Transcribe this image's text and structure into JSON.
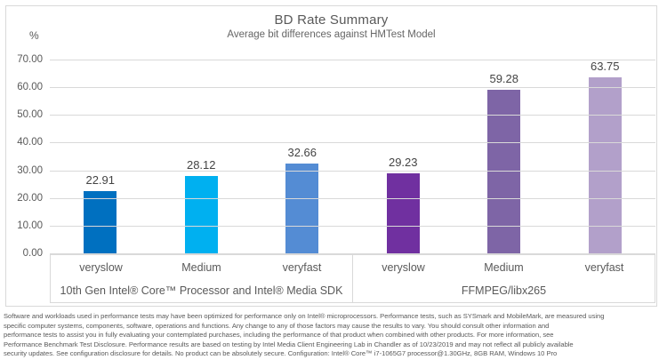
{
  "chart": {
    "title": "BD Rate Summary",
    "subtitle": "Average bit differences against HMTest Model",
    "unit_label": "%"
  },
  "chart_data": {
    "type": "bar",
    "title": "BD Rate Summary",
    "subtitle": "Average bit differences against HMTest Model",
    "ylabel": "%",
    "ylim": [
      0,
      70
    ],
    "ytick_step": 10,
    "ytick_format_decimals": 2,
    "grid": true,
    "legend": "none",
    "groups": [
      {
        "label": "10th Gen Intel® Core™ Processor and Intel® Media SDK",
        "categories": [
          "veryslow",
          "Medium",
          "veryfast"
        ],
        "values": [
          22.91,
          28.12,
          32.66
        ],
        "colors": [
          "#0070C0",
          "#00B0F0",
          "#548CD4"
        ]
      },
      {
        "label": "FFMPEG/libx265",
        "categories": [
          "veryslow",
          "Medium",
          "veryfast"
        ],
        "values": [
          29.23,
          59.28,
          63.75
        ],
        "colors": [
          "#7030A0",
          "#7E65A6",
          "#B2A0CA"
        ]
      }
    ]
  },
  "disclaimer": {
    "lines": [
      "Software and workloads used in performance tests may have been optimized for performance only on Intel® microprocessors. Performance tests, such as SYSmark and MobileMark, are measured using",
      "specific computer systems, components, software, operations and functions. Any change to any of those factors may cause the results to vary. You should consult other information and",
      "performance tests to assist you in fully evaluating your contemplated purchases, including the performance of that product when combined with other products. For more information, see",
      "Performance Benchmark Test Disclosure. Performance results are based on testing by Intel Media Client Engineering Lab in Chandler as of 10/23/2019 and may not reflect all publicly available",
      "security updates. See configuration disclosure for details. No product can be absolutely secure. Configuration: Intel® Core™ i7-1065G7 processor@1.30GHz, 8GB RAM, Windows 10 Pro"
    ]
  }
}
